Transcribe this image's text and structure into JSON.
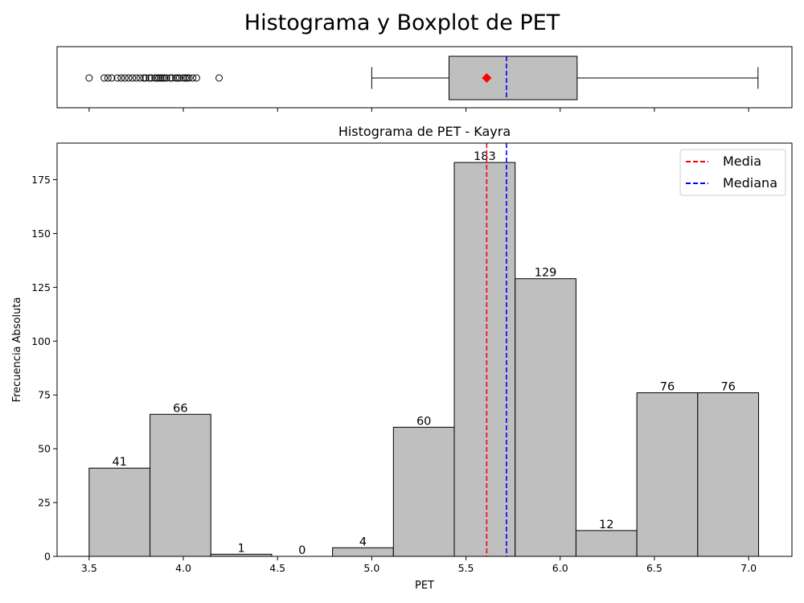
{
  "figure": {
    "suptitle": "Histograma y Boxplot de PET"
  },
  "chart_data": [
    {
      "type": "box",
      "orientation": "horizontal",
      "whisker_low": 5.0,
      "q1": 5.41,
      "median": 5.715,
      "mean": 5.61,
      "q3": 6.09,
      "whisker_high": 7.05,
      "outliers": [
        3.5,
        3.58,
        3.6,
        3.62,
        3.65,
        3.67,
        3.69,
        3.71,
        3.73,
        3.75,
        3.77,
        3.79,
        3.8,
        3.82,
        3.83,
        3.85,
        3.86,
        3.87,
        3.88,
        3.89,
        3.9,
        3.91,
        3.93,
        3.94,
        3.96,
        3.97,
        3.98,
        4.0,
        4.01,
        4.02,
        4.03,
        4.05,
        4.07,
        4.19
      ],
      "xlim": [
        3.33,
        7.23
      ],
      "xticks": [
        3.5,
        4.0,
        4.5,
        5.0,
        5.5,
        6.0,
        6.5,
        7.0
      ],
      "colors": {
        "box": "#bfbfbf",
        "mean_marker": "#ff0000",
        "median_line": "#0000ff"
      }
    },
    {
      "type": "bar",
      "title": "Histograma de PET - Kayra",
      "xlabel": "PET",
      "ylabel": "Frecuencia Absoluta",
      "bin_edges": [
        3.5,
        3.823,
        4.146,
        4.469,
        4.792,
        5.115,
        5.438,
        5.761,
        6.084,
        6.407,
        6.73,
        7.053
      ],
      "values": [
        41,
        66,
        1,
        0,
        4,
        60,
        183,
        129,
        12,
        76,
        76
      ],
      "labels": [
        "41",
        "66",
        "1",
        "0",
        "4",
        "60",
        "183",
        "129",
        "12",
        "76",
        "76"
      ],
      "xlim": [
        3.33,
        7.23
      ],
      "ylim": [
        0,
        192
      ],
      "xticks": [
        3.5,
        4.0,
        4.5,
        5.0,
        5.5,
        6.0,
        6.5,
        7.0
      ],
      "xtick_labels": [
        "3.5",
        "4.0",
        "4.5",
        "5.0",
        "5.5",
        "6.0",
        "6.5",
        "7.0"
      ],
      "yticks": [
        0,
        25,
        50,
        75,
        100,
        125,
        150,
        175
      ],
      "ytick_labels": [
        "0",
        "25",
        "50",
        "75",
        "100",
        "125",
        "150",
        "175"
      ],
      "mean": 5.61,
      "median": 5.715,
      "legend": {
        "placement": "top-right",
        "entries": [
          {
            "label": "Media",
            "color": "#ff0000",
            "style": "dashed"
          },
          {
            "label": "Mediana",
            "color": "#0000ff",
            "style": "dashed"
          }
        ]
      },
      "colors": {
        "bar": "#bfbfbf",
        "edge": "#000000"
      },
      "grid": false
    }
  ]
}
